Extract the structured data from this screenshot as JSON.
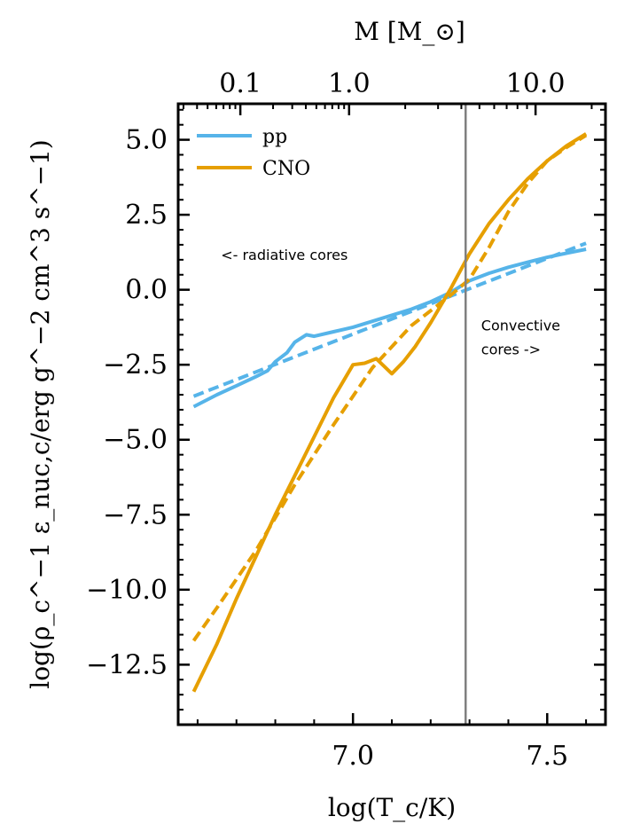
{
  "chart_data": {
    "type": "line",
    "xlabel": "log(T_c/K)",
    "ylabel": "log(ρ_c^−1 ε_nuc,c/erg g^−2 cm^3 s^−1)",
    "top_xlabel": "M [M_⊙]",
    "xlim": [
      6.55,
      7.65
    ],
    "ylim": [
      -14.5,
      6.2
    ],
    "x_ticks": [
      7.0,
      7.5
    ],
    "x_tick_labels": [
      "7.0",
      "7.5"
    ],
    "y_ticks": [
      5.0,
      2.5,
      0.0,
      -2.5,
      -5.0,
      -7.5,
      -10.0,
      -12.5
    ],
    "y_tick_labels": [
      "5.0",
      "2.5",
      "0.0",
      "−2.5",
      "−5.0",
      "−7.5",
      "−10.0",
      "−12.5"
    ],
    "top_ticks_x": [
      6.71,
      6.99,
      7.47
    ],
    "top_tick_labels": [
      "0.1",
      "1.0",
      "10.0"
    ],
    "vline_x": 7.29,
    "vline_color": "#808080",
    "annotations": [
      {
        "text": "<- radiative cores",
        "x": 6.66,
        "y": 1.0
      },
      {
        "text": "Convective",
        "x": 7.33,
        "y": -1.35
      },
      {
        "text": "cores ->",
        "x": 7.33,
        "y": -2.15
      }
    ],
    "legend": {
      "position": "top-left",
      "entries": [
        "pp",
        "CNO"
      ]
    },
    "series": [
      {
        "name": "pp",
        "style": "solid",
        "color": "#56B4E9",
        "x": [
          6.59,
          6.65,
          6.7,
          6.75,
          6.78,
          6.8,
          6.83,
          6.85,
          6.88,
          6.9,
          6.95,
          7.0,
          7.05,
          7.1,
          7.15,
          7.2,
          7.25,
          7.3,
          7.35,
          7.4,
          7.45,
          7.5,
          7.55,
          7.6
        ],
        "y": [
          -3.9,
          -3.5,
          -3.2,
          -2.9,
          -2.7,
          -2.4,
          -2.1,
          -1.75,
          -1.5,
          -1.55,
          -1.4,
          -1.25,
          -1.05,
          -0.85,
          -0.65,
          -0.4,
          -0.1,
          0.3,
          0.55,
          0.75,
          0.92,
          1.08,
          1.22,
          1.35
        ]
      },
      {
        "name": "pp",
        "style": "dashed",
        "color": "#56B4E9",
        "x": [
          6.59,
          7.6
        ],
        "y": [
          -3.55,
          1.55
        ]
      },
      {
        "name": "CNO",
        "style": "solid",
        "color": "#E69F00",
        "x": [
          6.59,
          6.65,
          6.7,
          6.75,
          6.8,
          6.85,
          6.9,
          6.95,
          7.0,
          7.03,
          7.06,
          7.1,
          7.13,
          7.16,
          7.2,
          7.25,
          7.3,
          7.35,
          7.4,
          7.45,
          7.5,
          7.55,
          7.6
        ],
        "y": [
          -13.4,
          -11.8,
          -10.3,
          -8.9,
          -7.5,
          -6.2,
          -4.9,
          -3.6,
          -2.5,
          -2.45,
          -2.3,
          -2.8,
          -2.4,
          -1.9,
          -1.1,
          0.0,
          1.2,
          2.2,
          3.0,
          3.7,
          4.3,
          4.8,
          5.2
        ]
      },
      {
        "name": "CNO",
        "style": "dashed",
        "color": "#E69F00",
        "x": [
          6.59,
          6.65,
          6.75,
          6.85,
          6.95,
          7.05,
          7.15,
          7.25,
          7.3,
          7.35,
          7.4,
          7.45,
          7.5,
          7.55,
          7.6
        ],
        "y": [
          -11.7,
          -10.6,
          -8.7,
          -6.5,
          -4.5,
          -2.6,
          -1.2,
          -0.2,
          0.35,
          1.4,
          2.6,
          3.55,
          4.3,
          4.75,
          5.15
        ]
      }
    ]
  }
}
